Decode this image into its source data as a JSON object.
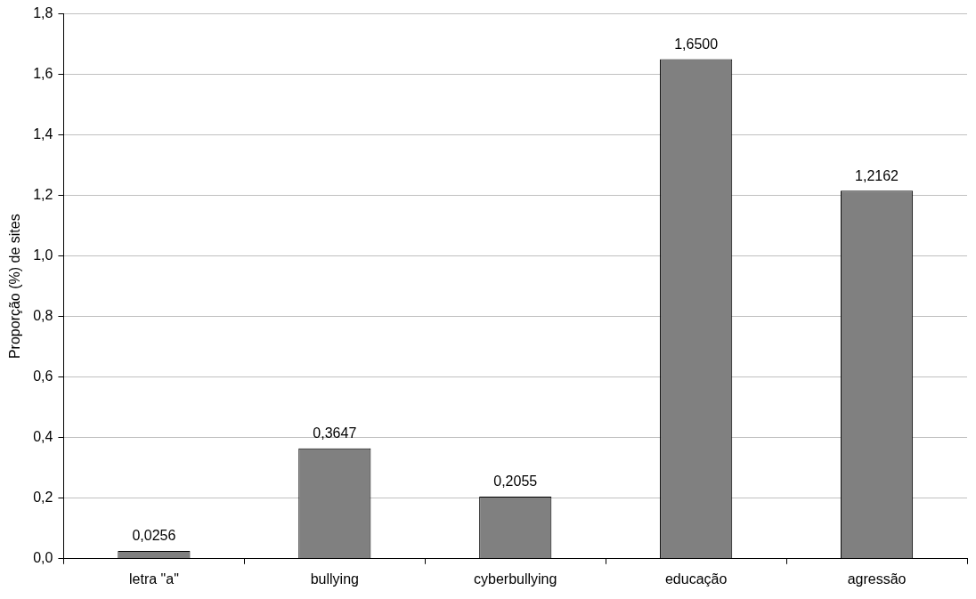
{
  "chart_data": {
    "type": "bar",
    "ylabel": "Proporção (%) de sites",
    "categories": [
      "letra \"a\"",
      "bullying",
      "cyberbullying",
      "educação",
      "agressão"
    ],
    "values": [
      0.0256,
      0.3647,
      0.2055,
      1.65,
      1.2162
    ],
    "value_labels": [
      "0,0256",
      "0,3647",
      "0,2055",
      "1,6500",
      "1,2162"
    ],
    "color": "#808080",
    "ylim": [
      0,
      1.8
    ],
    "yticks": [
      {
        "value": 0,
        "label": "0,0"
      },
      {
        "value": 0.2,
        "label": "0,2"
      },
      {
        "value": 0.4,
        "label": "0,4"
      },
      {
        "value": 0.6,
        "label": "0,6"
      },
      {
        "value": 0.8,
        "label": "0,8"
      },
      {
        "value": 1,
        "label": "1,0"
      },
      {
        "value": 1.2,
        "label": "1,2"
      },
      {
        "value": 1.4,
        "label": "1,4"
      },
      {
        "value": 1.6,
        "label": "1,6"
      },
      {
        "value": 1.8,
        "label": "1,8"
      }
    ],
    "grid": "y",
    "legend": false
  }
}
